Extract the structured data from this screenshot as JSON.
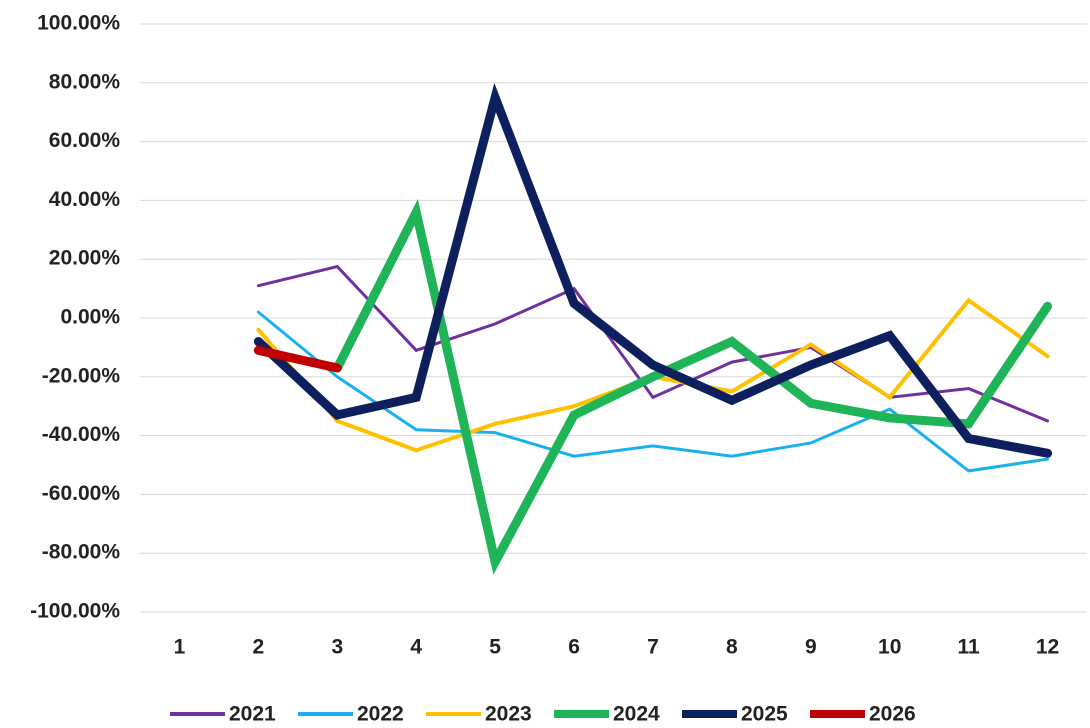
{
  "chart_data": {
    "type": "line",
    "categories": [
      "1",
      "2",
      "3",
      "4",
      "5",
      "6",
      "7",
      "8",
      "9",
      "10",
      "11",
      "12"
    ],
    "series": [
      {
        "name": "2021",
        "color": "#7030a0",
        "line_width": 3,
        "values": [
          null,
          11,
          17.5,
          -11,
          -2,
          10,
          -27,
          -15,
          -10,
          -27,
          -24,
          -35
        ]
      },
      {
        "name": "2022",
        "color": "#1ab0f0",
        "line_width": 3,
        "values": [
          null,
          2,
          -20,
          -38,
          -39,
          -47,
          -43.5,
          -47,
          -42.5,
          -31,
          -52,
          -48
        ]
      },
      {
        "name": "2023",
        "color": "#ffc000",
        "line_width": 4,
        "values": [
          null,
          -4,
          -35,
          -45,
          -36,
          -30,
          -20,
          -25,
          -9,
          -27,
          6,
          -13
        ]
      },
      {
        "name": "2024",
        "color": "#1fb457",
        "line_width": 9,
        "values": [
          null,
          null,
          -17,
          36,
          -83,
          -33,
          -20,
          -8,
          -29,
          -34,
          -36,
          4
        ]
      },
      {
        "name": "2025",
        "color": "#0d1f5c",
        "line_width": 9,
        "values": [
          null,
          -8,
          -33,
          -27,
          75,
          5,
          -16,
          -28,
          -16,
          -6,
          -41,
          -46
        ]
      },
      {
        "name": "2026",
        "color": "#c00000",
        "line_width": 9,
        "values": [
          null,
          -11,
          -17,
          null,
          null,
          null,
          null,
          null,
          null,
          null,
          null,
          null
        ]
      }
    ],
    "ylim": [
      -100,
      100
    ],
    "yticks": [
      {
        "value": -100,
        "label": "-100.00%"
      },
      {
        "value": -80,
        "label": "-80.00%"
      },
      {
        "value": -60,
        "label": "-60.00%"
      },
      {
        "value": -40,
        "label": "-40.00%"
      },
      {
        "value": -20,
        "label": "-20.00%"
      },
      {
        "value": 0,
        "label": "0.00%"
      },
      {
        "value": 20,
        "label": "20.00%"
      },
      {
        "value": 40,
        "label": "40.00%"
      },
      {
        "value": 60,
        "label": "60.00%"
      },
      {
        "value": 80,
        "label": "80.00%"
      },
      {
        "value": 100,
        "label": "100.00%"
      }
    ],
    "grid": true
  }
}
